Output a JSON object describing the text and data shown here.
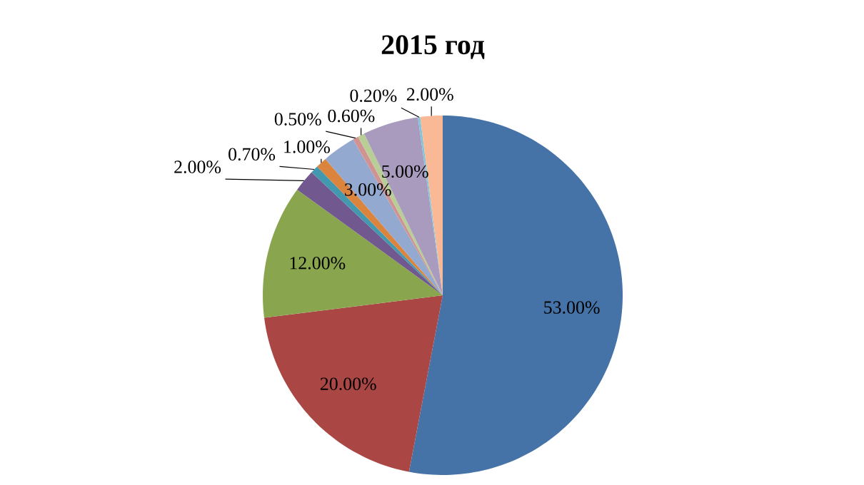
{
  "chart_data": {
    "type": "pie",
    "title": "2015 год",
    "categories": [
      null,
      null,
      null,
      null,
      null,
      null,
      null,
      null,
      null,
      null,
      null,
      null
    ],
    "values": [
      53,
      20,
      12,
      2,
      0.7,
      1,
      3,
      0.5,
      0.6,
      5,
      0.2,
      2
    ],
    "value_labels": [
      "53.00%",
      "20.00%",
      "12.00%",
      "2.00%",
      "0.70%",
      "1.00%",
      "3.00%",
      "0.50%",
      "0.60%",
      "5.00%",
      "0.20%",
      "2.00%"
    ],
    "colors": [
      "#4572a7",
      "#aa4643",
      "#89a54e",
      "#71588f",
      "#4198af",
      "#db843d",
      "#93a9cf",
      "#d19392",
      "#b9cd96",
      "#a99bbd",
      "#7fc6dc",
      "#f9b996"
    ]
  }
}
